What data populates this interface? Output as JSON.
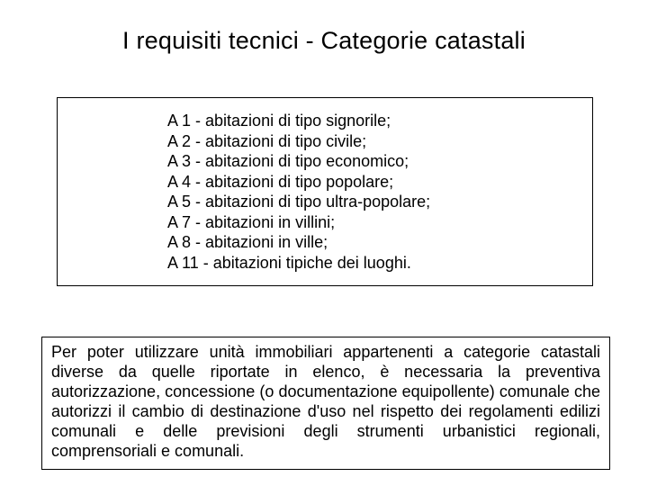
{
  "title": "I requisiti tecnici - Categorie catastali",
  "categories": {
    "item0": "A 1 - abitazioni di tipo signorile;",
    "item1": "A 2 - abitazioni di tipo civile;",
    "item2": "A 3 - abitazioni di tipo economico;",
    "item3": "A 4 - abitazioni di tipo popolare;",
    "item4": "A 5 - abitazioni di tipo ultra-popolare;",
    "item5": "A 7 - abitazioni in villini;",
    "item6": "A 8 - abitazioni in ville;",
    "item7": "A 11 - abitazioni tipiche dei luoghi."
  },
  "note": "Per poter utilizzare unità immobiliari appartenenti a categorie catastali diverse da quelle riportate in elenco, è necessaria la preventiva autorizzazione, concessione (o documentazione equipollente) comunale che autorizzi il cambio di destinazione d'uso nel rispetto dei regolamenti edilizi comunali e delle previsioni degli strumenti urbanistici regionali, comprensoriali e comunali.",
  "style": {
    "background_color": "#ffffff",
    "text_color": "#000000",
    "border_color": "#000000",
    "title_fontsize": 27,
    "body_fontsize": 18,
    "font_family": "Arial"
  }
}
